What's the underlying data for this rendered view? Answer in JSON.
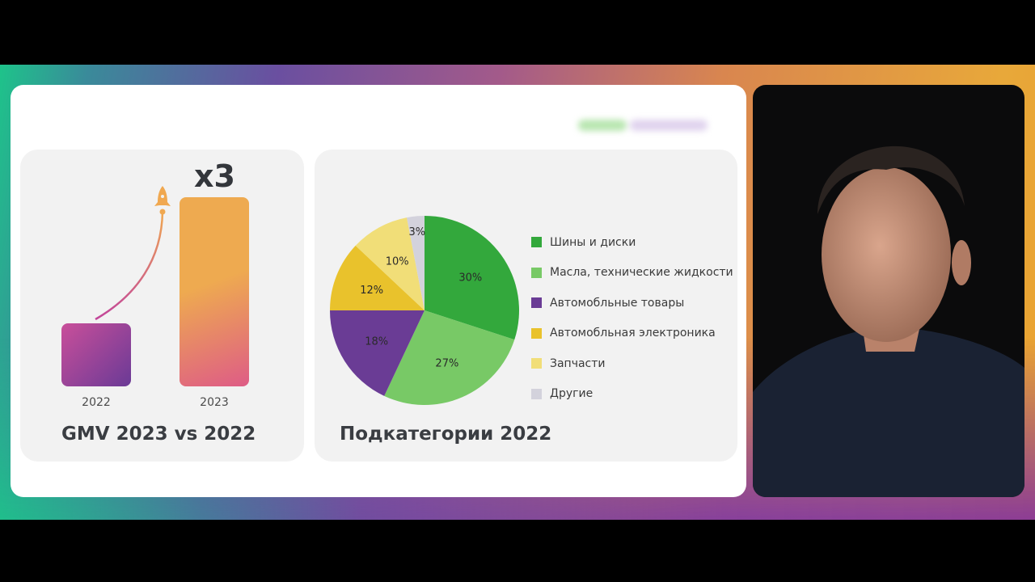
{
  "gmv_panel": {
    "title": "GMV 2023 vs 2022",
    "multiplier_label": "x3",
    "rocket_icon": "rocket-icon"
  },
  "pie_panel": {
    "title": "Подкатегории 2022"
  },
  "chart_data": [
    {
      "type": "bar",
      "title": "GMV 2023 vs 2022",
      "categories": [
        "2022",
        "2023"
      ],
      "values": [
        1,
        3
      ],
      "annotation": "x3",
      "colors": [
        [
          "#c94f9a",
          "#6a3a96"
        ],
        [
          "#eeaa50",
          "#de5c86"
        ]
      ]
    },
    {
      "type": "pie",
      "title": "Подкатегории 2022",
      "legend_position": "right",
      "slices": [
        {
          "label": "Шины и диски",
          "value": 30,
          "value_label": "30%",
          "color": "#33a83c"
        },
        {
          "label": "Масла, технические жидкости",
          "value": 27,
          "value_label": "27%",
          "color": "#78c966"
        },
        {
          "label": "Автомобльные товары",
          "value": 18,
          "value_label": "18%",
          "color": "#6a3c95"
        },
        {
          "label": "Автомобльная электроника",
          "value": 12,
          "value_label": "12%",
          "color": "#e9c22c"
        },
        {
          "label": "Запчасти",
          "value": 10,
          "value_label": "10%",
          "color": "#f1de78"
        },
        {
          "label": "Другие",
          "value": 3,
          "value_label": "3%",
          "color": "#d3d2dc"
        }
      ]
    }
  ]
}
